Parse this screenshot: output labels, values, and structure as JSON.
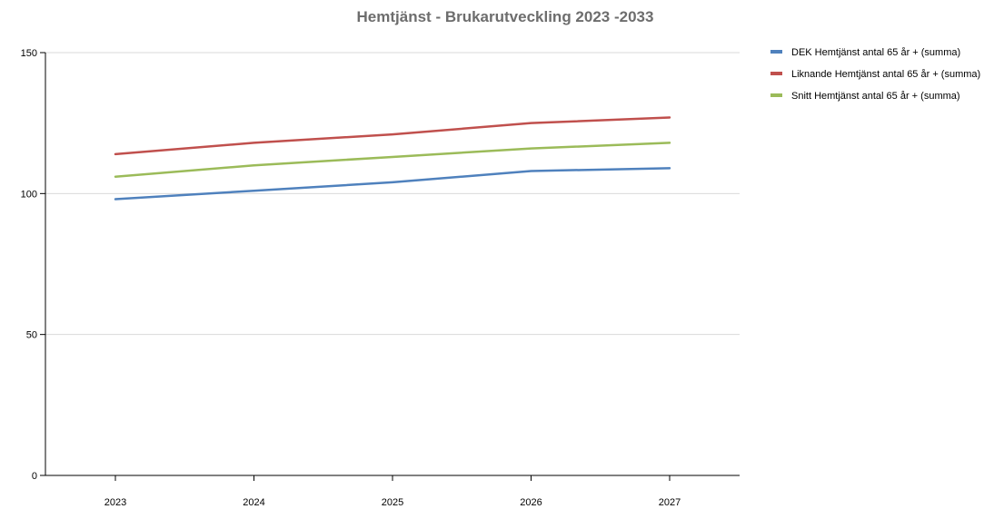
{
  "chart_data": {
    "type": "line",
    "title": "Hemtjänst - Brukarutveckling 2023 -2033",
    "xlabel": "",
    "ylabel": "",
    "categories": [
      "2023",
      "2024",
      "2025",
      "2026",
      "2027"
    ],
    "ylim": [
      0,
      150
    ],
    "yticks": [
      0,
      50,
      100,
      150
    ],
    "grid": true,
    "legend_position": "right",
    "series": [
      {
        "name": "DEK Hemtjänst antal 65 år + (summa)",
        "color": "#4f81bd",
        "values": [
          98,
          101,
          104,
          108,
          109
        ]
      },
      {
        "name": "Liknande Hemtjänst antal 65 år + (summa)",
        "color": "#c0504d",
        "values": [
          114,
          118,
          121,
          125,
          127
        ]
      },
      {
        "name": "Snitt Hemtjänst antal 65 år + (summa)",
        "color": "#9bbb59",
        "values": [
          106,
          110,
          113,
          116,
          118
        ]
      }
    ]
  }
}
